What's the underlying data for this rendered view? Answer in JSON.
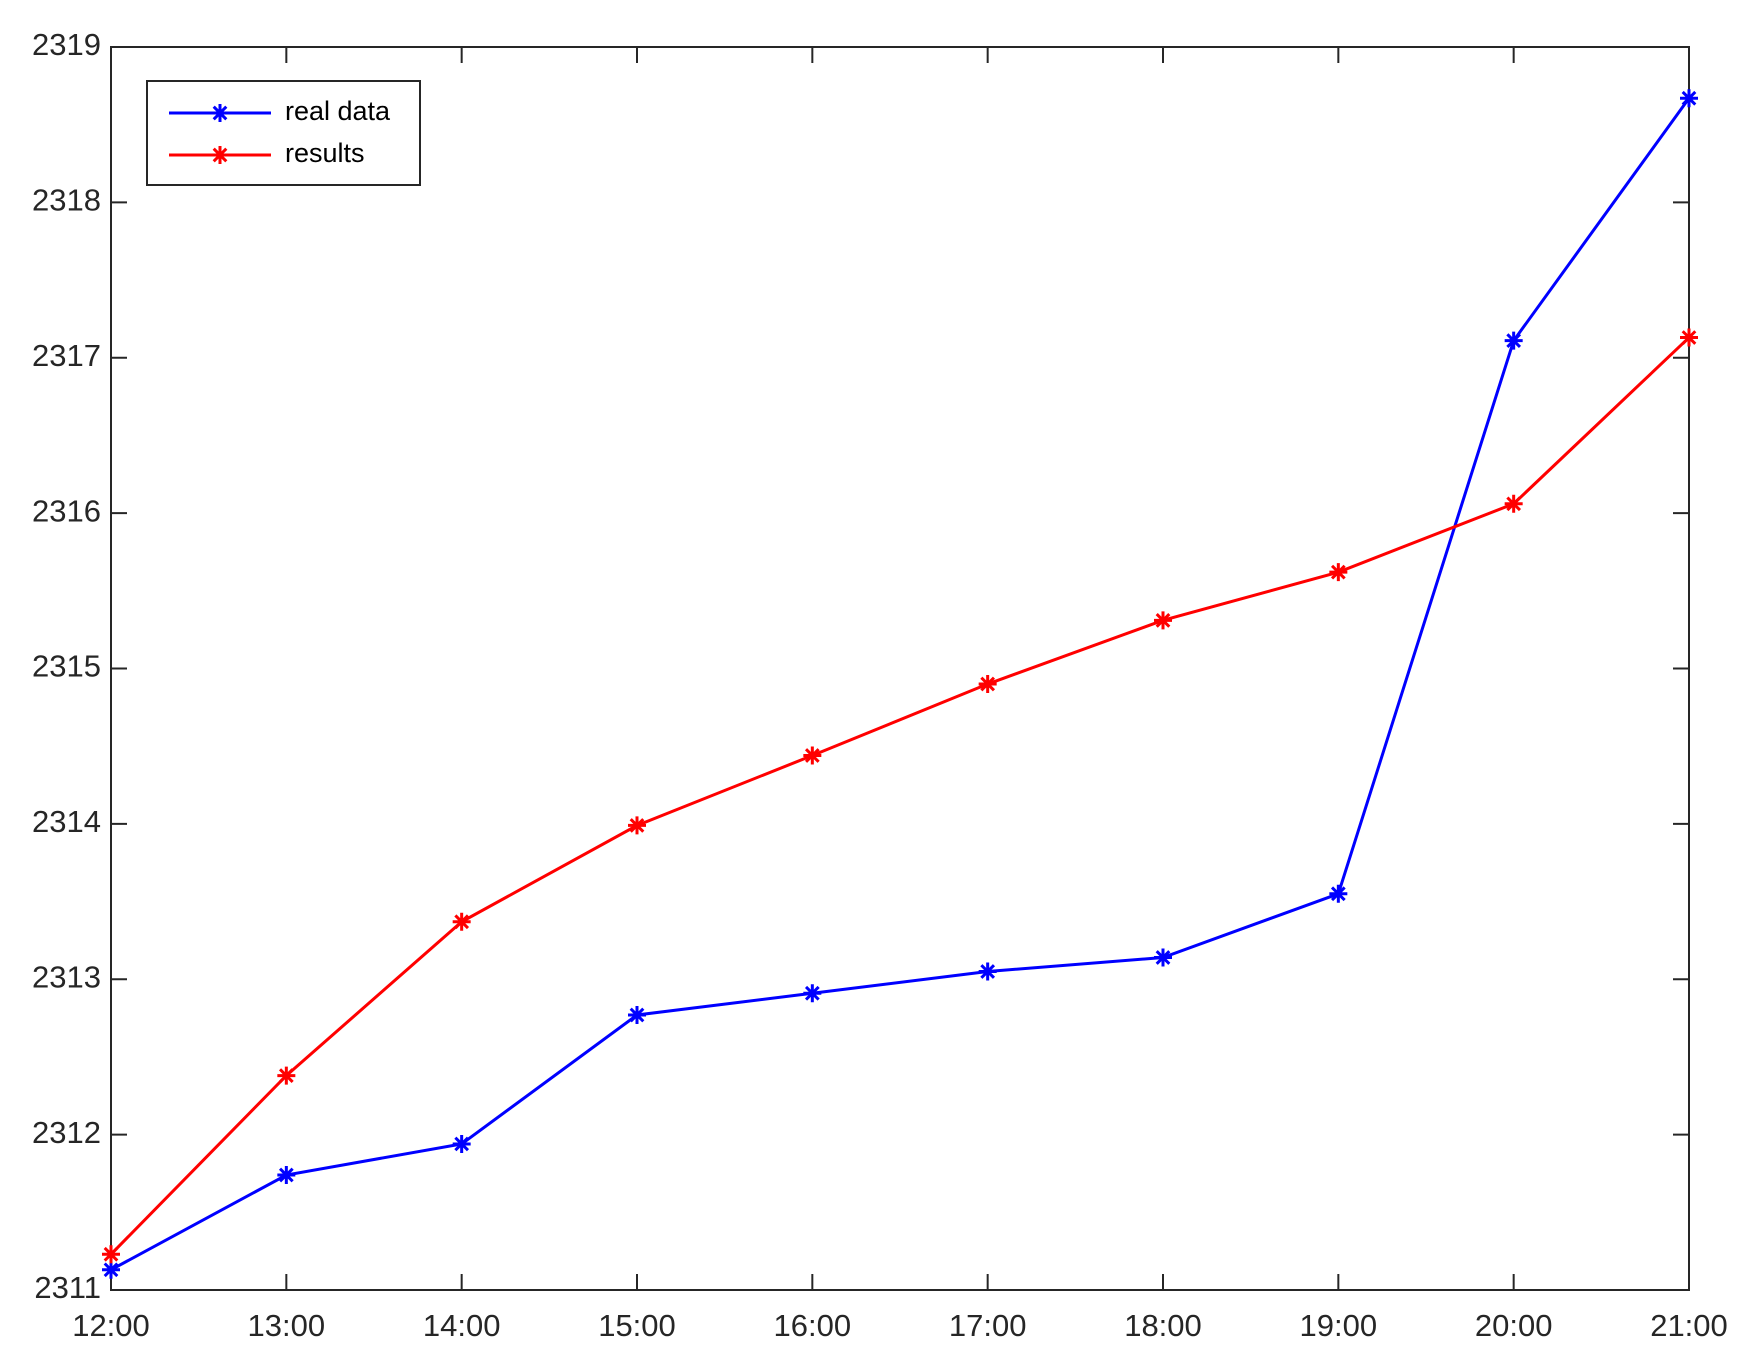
{
  "chart_data": {
    "type": "line",
    "categories": [
      "12:00",
      "13:00",
      "14:00",
      "15:00",
      "16:00",
      "17:00",
      "18:00",
      "19:00",
      "20:00",
      "21:00"
    ],
    "series": [
      {
        "name": "real data",
        "color": "#0000ff",
        "values": [
          2311.13,
          2311.74,
          2311.94,
          2312.77,
          2312.91,
          2313.05,
          2313.14,
          2313.55,
          2317.11,
          2318.67
        ]
      },
      {
        "name": "results",
        "color": "#ff0000",
        "values": [
          2311.23,
          2312.38,
          2313.37,
          2313.99,
          2314.44,
          2314.9,
          2315.31,
          2315.62,
          2316.06,
          2317.13
        ]
      }
    ],
    "ylim": [
      2311,
      2319
    ],
    "yticks": [
      2311,
      2312,
      2313,
      2314,
      2315,
      2316,
      2317,
      2318,
      2319
    ],
    "grid": false,
    "legend": "upper-left",
    "marker": "asterisk"
  }
}
